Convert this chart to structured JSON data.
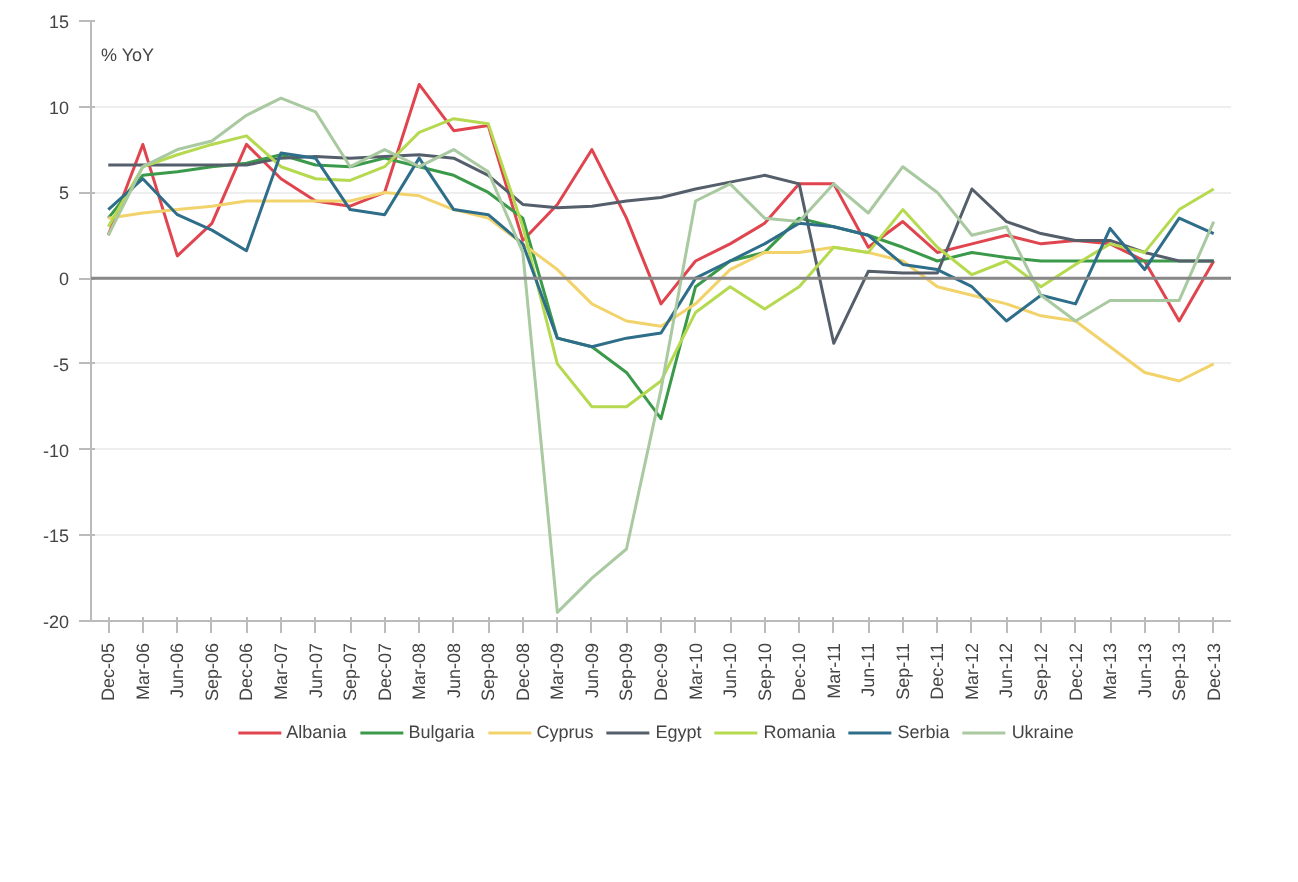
{
  "chart_data": {
    "type": "line",
    "annotations": [
      "% YoY"
    ],
    "categories": [
      "Dec-05",
      "Mar-06",
      "Jun-06",
      "Sep-06",
      "Dec-06",
      "Mar-07",
      "Jun-07",
      "Sep-07",
      "Dec-07",
      "Mar-08",
      "Jun-08",
      "Sep-08",
      "Dec-08",
      "Mar-09",
      "Jun-09",
      "Sep-09",
      "Dec-09",
      "Mar-10",
      "Jun-10",
      "Sep-10",
      "Dec-10",
      "Mar-11",
      "Jun-11",
      "Sep-11",
      "Dec-11",
      "Mar-12",
      "Jun-12",
      "Sep-12",
      "Dec-12",
      "Mar-13",
      "Jun-13",
      "Sep-13",
      "Dec-13"
    ],
    "series": [
      {
        "name": "Albania",
        "color": "#e0454f",
        "values": [
          2.5,
          7.8,
          1.3,
          3.2,
          7.8,
          5.8,
          4.5,
          4.2,
          5.0,
          11.3,
          8.6,
          8.9,
          2.2,
          4.3,
          7.5,
          3.5,
          -1.5,
          1.0,
          2.0,
          3.2,
          5.5,
          5.5,
          1.8,
          3.3,
          1.5,
          2.0,
          2.5,
          2.0,
          2.2,
          2.0,
          1.0,
          -2.5,
          1.0
        ]
      },
      {
        "name": "Bulgaria",
        "color": "#3a9a4a",
        "values": [
          3.5,
          6.0,
          6.2,
          6.5,
          6.7,
          7.2,
          6.6,
          6.5,
          7.0,
          6.5,
          6.0,
          5.0,
          3.5,
          -3.5,
          -4.0,
          -5.5,
          -8.2,
          -0.5,
          1.0,
          1.5,
          3.5,
          3.0,
          2.5,
          1.8,
          1.0,
          1.5,
          1.2,
          1.0,
          1.0,
          1.0,
          1.0,
          1.0,
          1.0
        ]
      },
      {
        "name": "Cyprus",
        "color": "#f2d36b",
        "values": [
          3.5,
          3.8,
          4.0,
          4.2,
          4.5,
          4.5,
          4.5,
          4.5,
          5.0,
          4.8,
          4.0,
          3.5,
          2.0,
          0.5,
          -1.5,
          -2.5,
          -2.8,
          -1.5,
          0.5,
          1.5,
          1.5,
          1.8,
          1.5,
          1.0,
          -0.5,
          -1.0,
          -1.5,
          -2.2,
          -2.5,
          -4.0,
          -5.5,
          -6.0,
          -5.0
        ]
      },
      {
        "name": "Egypt",
        "color": "#555f6b",
        "values": [
          6.6,
          6.6,
          6.6,
          6.6,
          6.6,
          7.0,
          7.1,
          7.0,
          7.1,
          7.2,
          7.0,
          6.0,
          4.3,
          4.1,
          4.2,
          4.5,
          4.7,
          5.2,
          5.6,
          6.0,
          5.5,
          -3.8,
          0.4,
          0.3,
          0.3,
          5.2,
          3.3,
          2.6,
          2.2,
          2.2,
          1.5,
          1.0,
          1.0
        ]
      },
      {
        "name": "Romania",
        "color": "#b5d94f",
        "values": [
          3.0,
          6.5,
          7.2,
          7.8,
          8.3,
          6.5,
          5.8,
          5.7,
          6.5,
          8.5,
          9.3,
          9.0,
          3.0,
          -5.0,
          -7.5,
          -7.5,
          -6.0,
          -2.0,
          -0.5,
          -1.8,
          -0.5,
          1.8,
          1.5,
          4.0,
          1.8,
          0.2,
          1.0,
          -0.5,
          0.8,
          2.0,
          1.5,
          4.0,
          5.2
        ]
      },
      {
        "name": "Serbia",
        "color": "#2f6e8a",
        "values": [
          4.0,
          5.8,
          3.7,
          2.8,
          1.6,
          7.3,
          7.0,
          4.0,
          3.7,
          7.0,
          4.0,
          3.7,
          2.0,
          -3.5,
          -4.0,
          -3.5,
          -3.2,
          0.0,
          1.0,
          2.0,
          3.2,
          3.0,
          2.5,
          0.8,
          0.5,
          -0.5,
          -2.5,
          -1.0,
          -1.5,
          2.9,
          0.5,
          3.5,
          2.6
        ]
      },
      {
        "name": "Ukraine",
        "color": "#a9c9a0",
        "values": [
          2.5,
          6.5,
          7.5,
          8.0,
          9.5,
          10.5,
          9.7,
          6.5,
          7.5,
          6.5,
          7.5,
          6.2,
          1.5,
          -19.5,
          -17.5,
          -15.8,
          -6.5,
          4.5,
          5.5,
          3.5,
          3.3,
          5.5,
          3.8,
          6.5,
          5.0,
          2.5,
          3.0,
          -1.0,
          -2.5,
          -1.3,
          -1.3,
          -1.3,
          3.3
        ]
      }
    ],
    "ylim": [
      -20,
      15
    ],
    "yticks": [
      -20,
      -15,
      -10,
      -5,
      0,
      5,
      10,
      15
    ],
    "ref_lines": [
      {
        "axis": "y",
        "value": 0,
        "color": "#888888"
      }
    ],
    "grid": "y",
    "legend": "bottom",
    "marker": "none",
    "line_style": "solid"
  }
}
